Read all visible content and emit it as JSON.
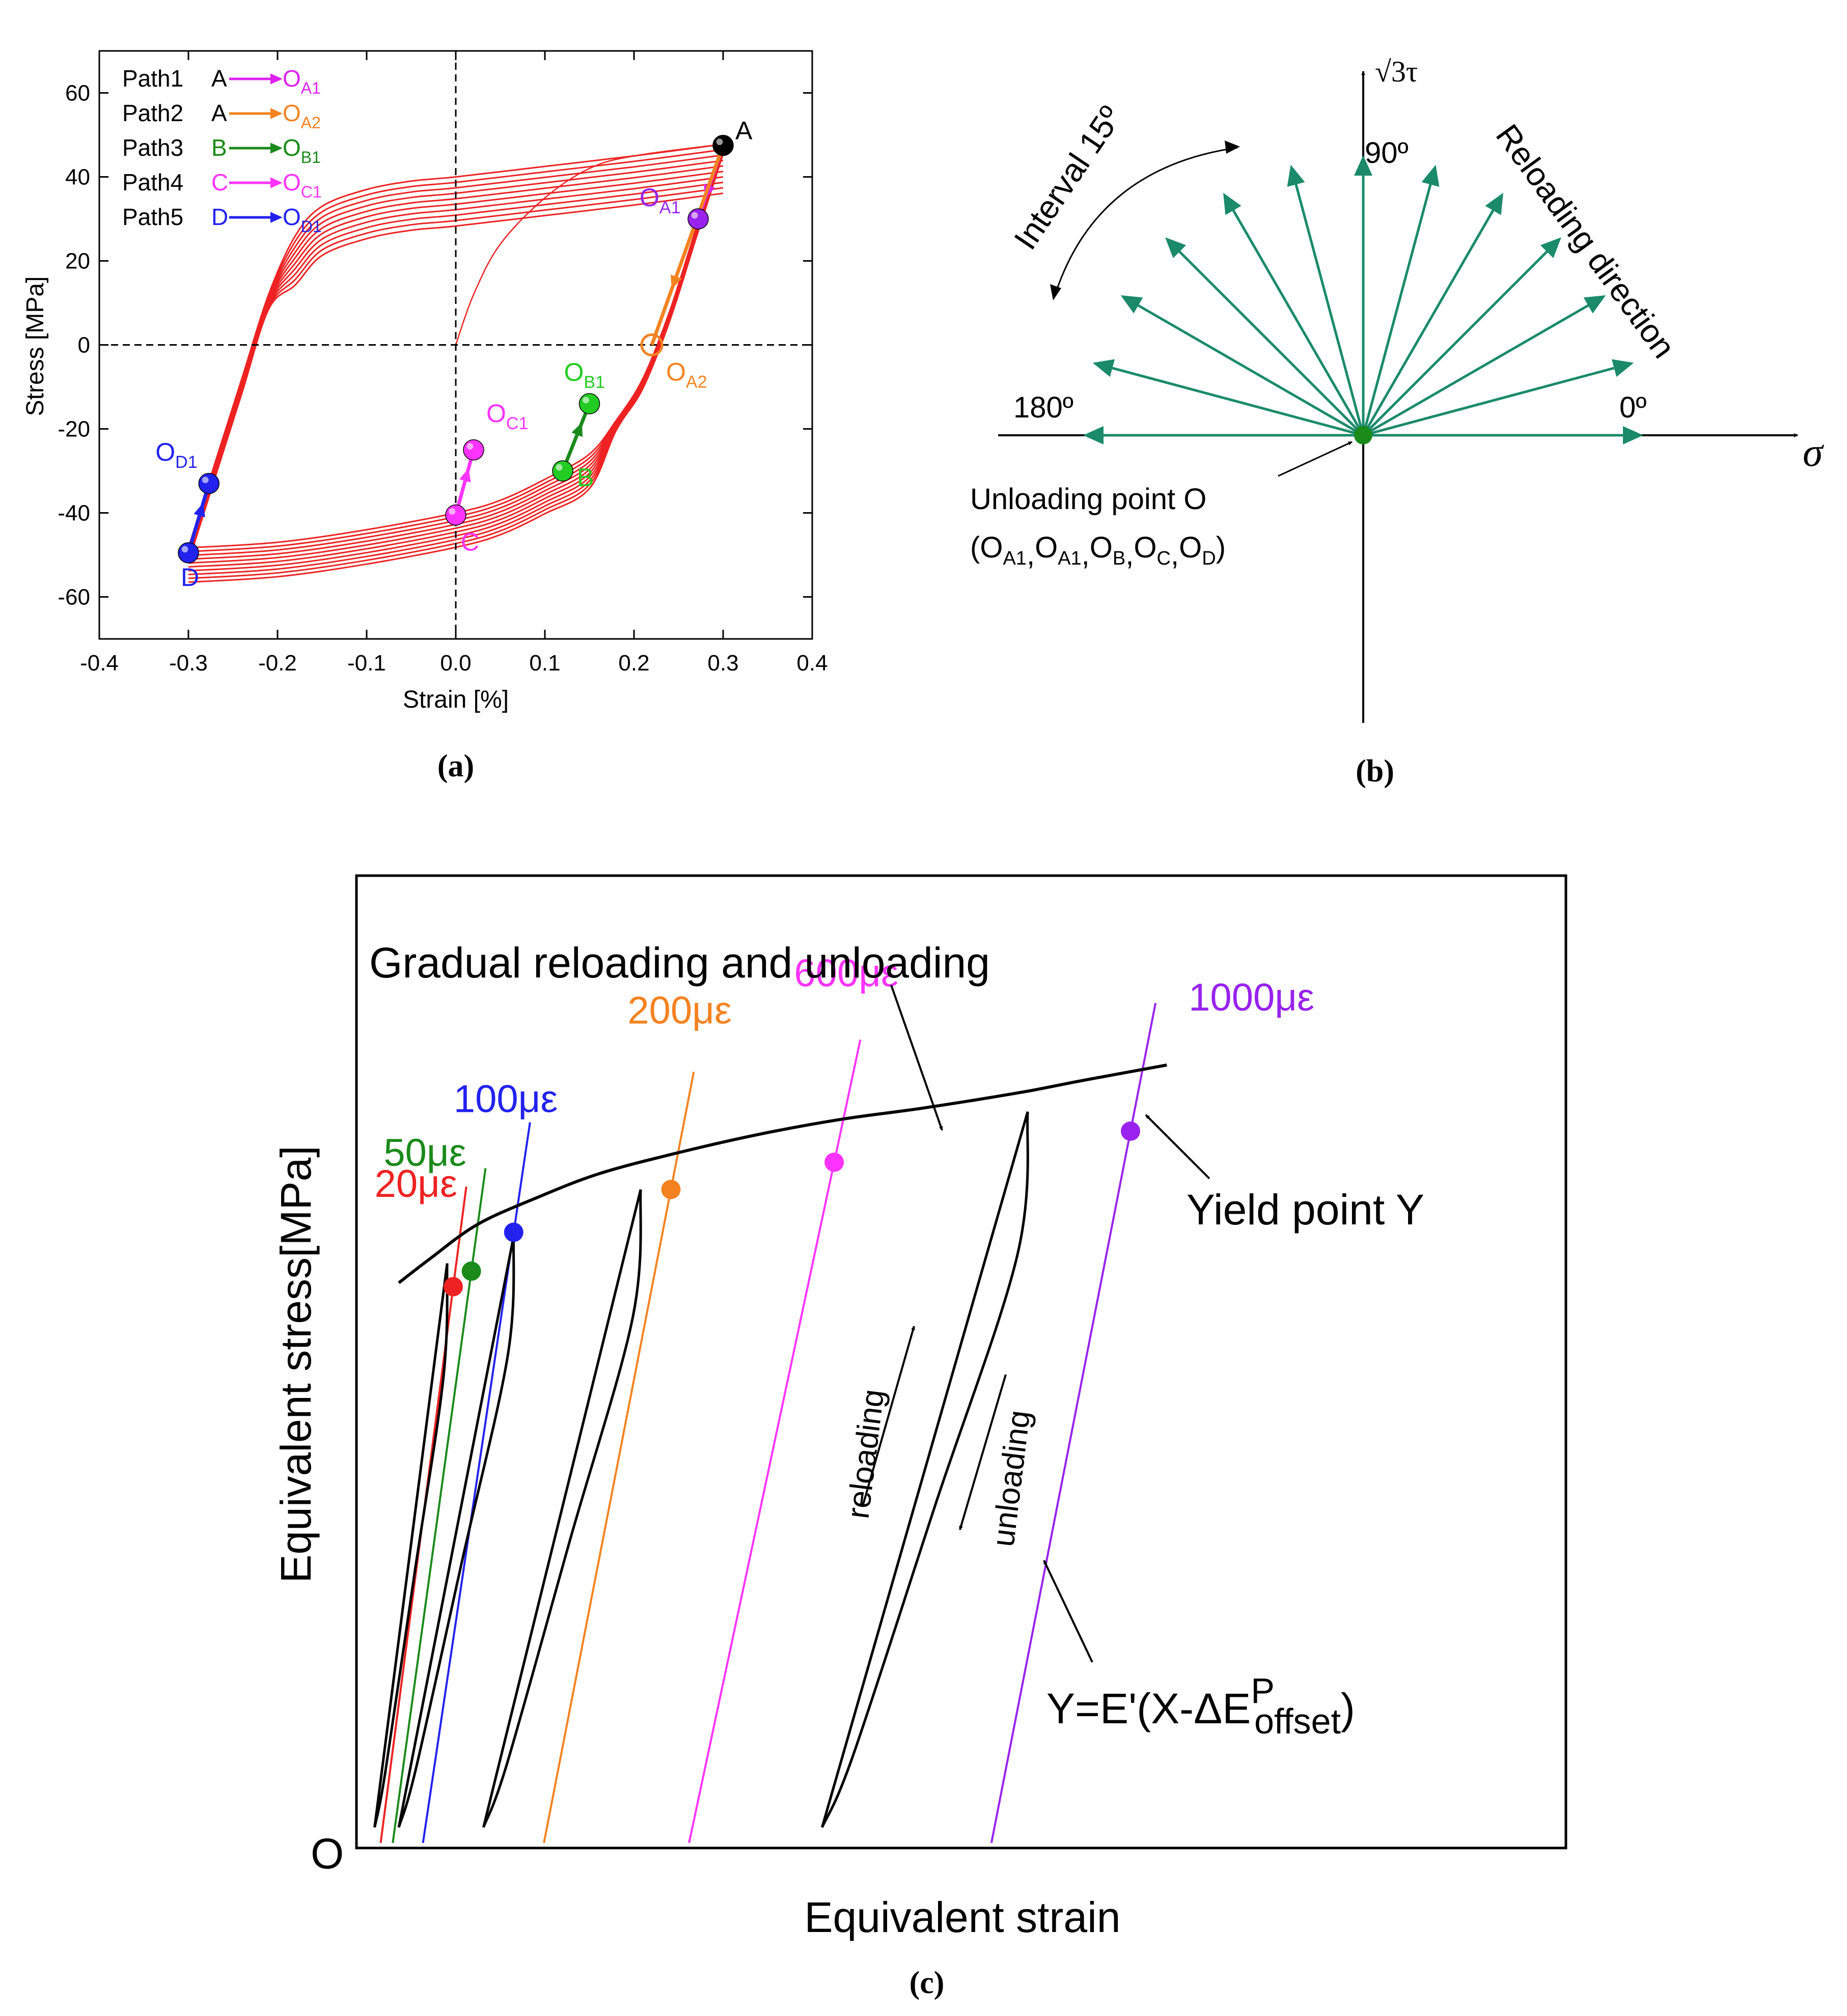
{
  "colors": {
    "red": "#ee2222",
    "magenta": "#dd22ee",
    "orange": "#f58220",
    "green": "#1a8a1a",
    "lightgreen": "#22cc22",
    "pink": "#ff33ff",
    "blue": "#2222ee",
    "purple": "#9922ee",
    "teal": "#1a8a6a",
    "black": "#000000"
  },
  "panels": {
    "a": "(a)",
    "b": "(b)",
    "c": "(c)"
  },
  "chart_data": [
    {
      "id": "a",
      "type": "line",
      "title": "",
      "xlabel": "Strain [%]",
      "ylabel": "Stress [MPa]",
      "xlim": [
        -0.4,
        0.4
      ],
      "ylim": [
        -70,
        70
      ],
      "xticks": [
        -0.4,
        -0.3,
        -0.2,
        -0.1,
        0.0,
        0.1,
        0.2,
        0.3,
        0.4
      ],
      "xtick_labels": [
        "-0.4",
        "-0.3",
        "-0.2",
        "-0.1",
        "0.0",
        "0.1",
        "0.2",
        "0.3",
        "0.4"
      ],
      "yticks": [
        -60,
        -40,
        -20,
        0,
        20,
        40,
        60
      ],
      "ytick_labels": [
        "-60",
        "-40",
        "-20",
        "0",
        "20",
        "40",
        "60"
      ],
      "legend": [
        {
          "name": "Path1",
          "from": "A",
          "to": "O",
          "sub": "A1",
          "color": "#dd22ee"
        },
        {
          "name": "Path2",
          "from": "A",
          "to": "O",
          "sub": "A2",
          "color": "#f58220"
        },
        {
          "name": "Path3",
          "from": "B",
          "to": "O",
          "sub": "B1",
          "color": "#1a8a1a"
        },
        {
          "name": "Path4",
          "from": "C",
          "to": "O",
          "sub": "C1",
          "color": "#ff33ff"
        },
        {
          "name": "Path5",
          "from": "D",
          "to": "O",
          "sub": "D1",
          "color": "#2222ee"
        }
      ],
      "hysteresis": {
        "color": "#ee2222",
        "upper_branch": [
          [
            -0.3,
            -48.3
          ],
          [
            -0.27,
            -28
          ],
          [
            -0.24,
            -8
          ],
          [
            -0.21,
            12
          ],
          [
            -0.18,
            26
          ],
          [
            -0.15,
            33
          ],
          [
            -0.1,
            37
          ],
          [
            -0.05,
            39
          ],
          [
            0.0,
            40
          ],
          [
            0.1,
            42.5
          ],
          [
            0.2,
            45
          ],
          [
            0.3,
            47.8
          ]
        ],
        "lower_branch": [
          [
            0.3,
            47.8
          ],
          [
            0.27,
            28
          ],
          [
            0.24,
            8
          ],
          [
            0.21,
            -8
          ],
          [
            0.18,
            -18
          ],
          [
            0.15,
            -26
          ],
          [
            0.1,
            -32
          ],
          [
            0.05,
            -37
          ],
          [
            0.0,
            -40
          ],
          [
            -0.1,
            -44
          ],
          [
            -0.2,
            -47
          ],
          [
            -0.3,
            -48.3
          ]
        ],
        "initial_curve": [
          [
            0.0,
            0
          ],
          [
            0.02,
            12
          ],
          [
            0.05,
            24
          ],
          [
            0.1,
            35
          ],
          [
            0.15,
            42
          ],
          [
            0.2,
            45
          ],
          [
            0.3,
            47.8
          ]
        ],
        "cycles": 10
      },
      "points": [
        {
          "label": "A",
          "x": 0.3,
          "y": 47.5,
          "color": "#000000"
        },
        {
          "label": "O",
          "sub": "A1",
          "x": 0.272,
          "y": 30,
          "color": "#9922ee"
        },
        {
          "label": "O",
          "sub": "A2",
          "x": 0.22,
          "y": 0,
          "color": "#f58220",
          "hollow": true
        },
        {
          "label": "B",
          "x": 0.12,
          "y": -30,
          "color": "#22cc22"
        },
        {
          "label": "O",
          "sub": "B1",
          "x": 0.15,
          "y": -14,
          "color": "#22cc22"
        },
        {
          "label": "C",
          "x": 0.0,
          "y": -40.5,
          "color": "#ff33ff"
        },
        {
          "label": "O",
          "sub": "C1",
          "x": 0.02,
          "y": -25,
          "color": "#ff33ff"
        },
        {
          "label": "D",
          "x": -0.3,
          "y": -49.5,
          "color": "#2222ee"
        },
        {
          "label": "O",
          "sub": "D1",
          "x": -0.277,
          "y": -33,
          "color": "#2222ee"
        }
      ],
      "paths": [
        {
          "name": "Path1",
          "from": [
            0.3,
            47.5
          ],
          "to": [
            0.272,
            30
          ],
          "color": "#dd22ee"
        },
        {
          "name": "Path2",
          "from": [
            0.3,
            47.5
          ],
          "to": [
            0.22,
            0
          ],
          "color": "#f58220"
        },
        {
          "name": "Path3",
          "from": [
            0.12,
            -30
          ],
          "to": [
            0.15,
            -14
          ],
          "color": "#1a8a1a"
        },
        {
          "name": "Path4",
          "from": [
            0.0,
            -40.5
          ],
          "to": [
            0.02,
            -25
          ],
          "color": "#ff33ff"
        },
        {
          "name": "Path5",
          "from": [
            -0.3,
            -49.5
          ],
          "to": [
            -0.277,
            -33
          ],
          "color": "#2222ee"
        }
      ]
    },
    {
      "id": "b",
      "type": "diagram",
      "x_axis_label": "σ",
      "y_axis_label": "√3τ",
      "angles_deg": [
        0,
        15,
        30,
        45,
        60,
        75,
        90,
        105,
        120,
        135,
        150,
        165,
        180
      ],
      "angle_labels": [
        "0º",
        "90º",
        "180º"
      ],
      "interval_label": "Interval 15º",
      "reloading_label": "Reloading direction",
      "unloading_label": "Unloading point O",
      "unloading_points": [
        {
          "label": "O",
          "sub": "A1"
        },
        {
          "label": "O",
          "sub": "A1"
        },
        {
          "label": "O",
          "sub": "B"
        },
        {
          "label": "O",
          "sub": "C"
        },
        {
          "label": "O",
          "sub": "D"
        }
      ],
      "arrow_color": "#1a8a6a"
    },
    {
      "id": "c",
      "type": "line",
      "title": "Gradual reloading and unloading",
      "xlabel": "Equivalent strain",
      "ylabel": "Equivalent stress[MPa]",
      "origin_label": "O",
      "xlim": [
        0,
        100
      ],
      "ylim": [
        0,
        100
      ],
      "main_curve": [
        [
          3.5,
          72
        ],
        [
          6,
          75
        ],
        [
          10,
          79.5
        ],
        [
          15,
          83
        ],
        [
          20,
          86
        ],
        [
          26,
          88.5
        ],
        [
          33,
          91
        ],
        [
          40,
          93
        ],
        [
          47,
          94.5
        ],
        [
          55,
          96.5
        ],
        [
          60,
          98
        ],
        [
          67,
          100
        ]
      ],
      "loops": [
        {
          "peak": [
            7.5,
            74.5
          ],
          "bottom": [
            1.5,
            2
          ]
        },
        {
          "peak": [
            13,
            78
          ],
          "bottom": [
            3.5,
            2
          ]
        },
        {
          "peak": [
            23.5,
            84
          ],
          "bottom": [
            10.5,
            2
          ]
        },
        {
          "peak": [
            55.5,
            94
          ],
          "bottom": [
            38.5,
            2
          ]
        }
      ],
      "offset_lines": [
        {
          "label": "20με",
          "color": "#ee2222",
          "x0": 2.0,
          "yield": [
            8.0,
            71.5
          ]
        },
        {
          "label": "50με",
          "color": "#1a8a1a",
          "x0": 3.0,
          "yield": [
            9.5,
            73.5
          ]
        },
        {
          "label": "100με",
          "color": "#2222ee",
          "x0": 5.5,
          "yield": [
            13.0,
            78.5
          ]
        },
        {
          "label": "200με",
          "color": "#f58220",
          "x0": 15.5,
          "yield": [
            26.0,
            84.0
          ]
        },
        {
          "label": "600με",
          "color": "#ff33ff",
          "x0": 27.5,
          "yield": [
            39.5,
            87.5
          ]
        },
        {
          "label": "1000με",
          "color": "#9922ee",
          "x0": 52.5,
          "yield": [
            64.0,
            91.5
          ]
        }
      ],
      "annotations": {
        "yield_point": "Yield point Y",
        "equation_prefix": "Y=E'(X-ΔE",
        "equation_sup": "P",
        "equation_sub": "offset",
        "equation_suffix": ")",
        "reloading": "reloading",
        "unloading": "unloading"
      }
    }
  ]
}
